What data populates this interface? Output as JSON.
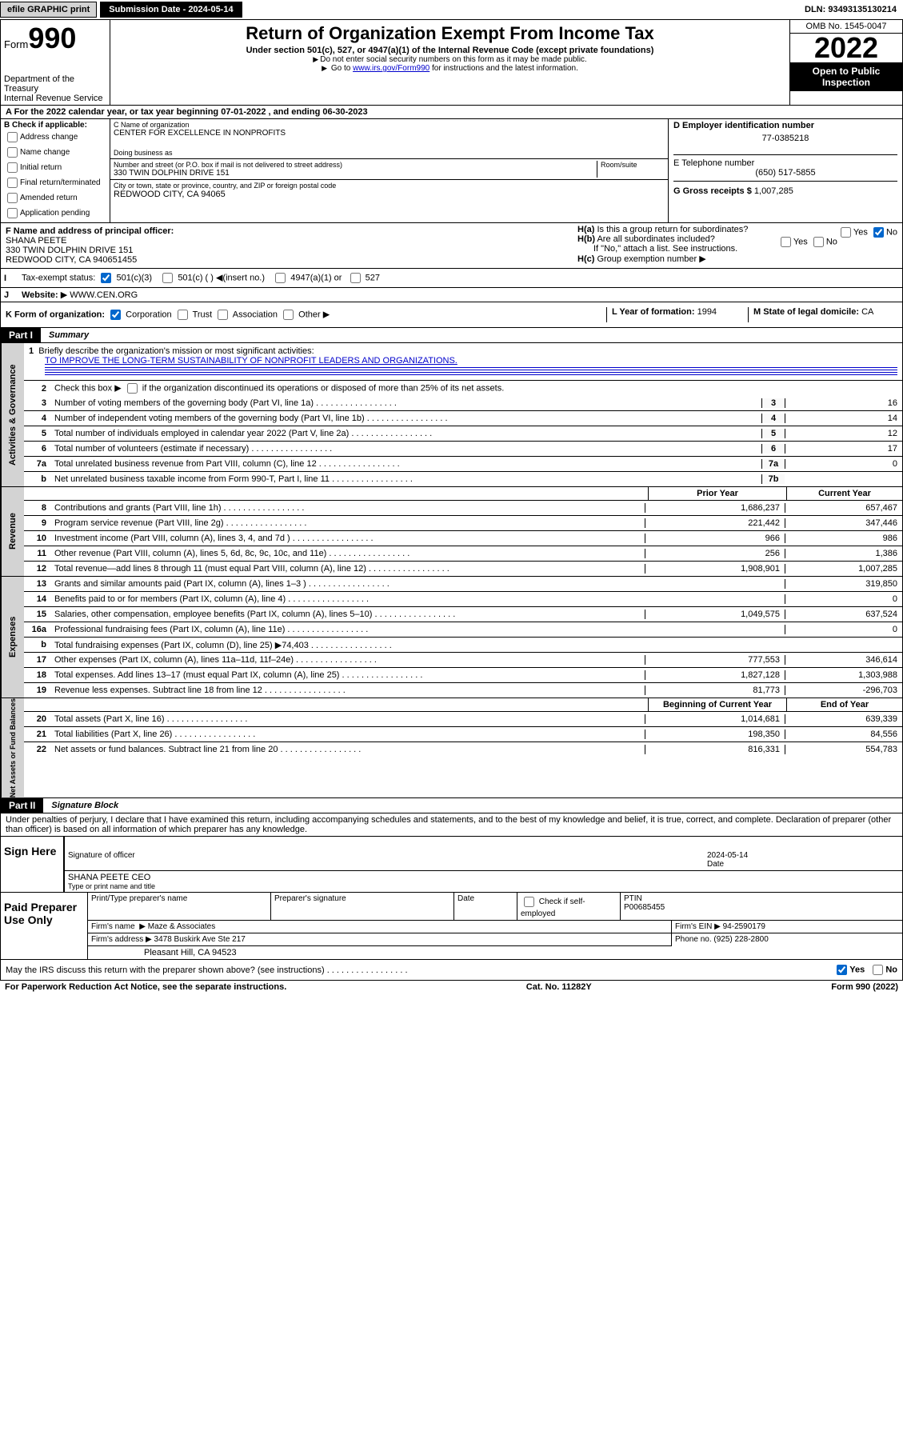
{
  "topbar": {
    "efile": "efile GRAPHIC print",
    "subdate_label": "Submission Date - 2024-05-14",
    "dln": "DLN: 93493135130214"
  },
  "header": {
    "form_label": "Form",
    "form_num": "990",
    "main_title": "Return of Organization Exempt From Income Tax",
    "subtitle": "Under section 501(c), 527, or 4947(a)(1) of the Internal Revenue Code (except private foundations)",
    "note1": "Do not enter social security numbers on this form as it may be made public.",
    "note2a": "Go to ",
    "note2_link": "www.irs.gov/Form990",
    "note2b": " for instructions and the latest information.",
    "dept": "Department of the Treasury",
    "irs": "Internal Revenue Service",
    "omb": "OMB No. 1545-0047",
    "year": "2022",
    "open": "Open to Public Inspection"
  },
  "A": {
    "text": "For the 2022 calendar year, or tax year beginning 07-01-2022   , and ending 06-30-2023",
    "service": "Service"
  },
  "B": {
    "label": "B Check if applicable:",
    "items": [
      "Address change",
      "Name change",
      "Initial return",
      "Final return/terminated",
      "Amended return",
      "Application pending"
    ]
  },
  "C": {
    "name_label": "C Name of organization",
    "name": "CENTER FOR EXCELLENCE IN NONPROFITS",
    "dba_label": "Doing business as",
    "street_label": "Number and street (or P.O. box if mail is not delivered to street address)",
    "room": "Room/suite",
    "street": "330 TWIN DOLPHIN DRIVE 151",
    "city_label": "City or town, state or province, country, and ZIP or foreign postal code",
    "city": "REDWOOD CITY, CA  94065"
  },
  "D": {
    "label": "D Employer identification number",
    "val": "77-0385218"
  },
  "E": {
    "label": "E Telephone number",
    "val": "(650) 517-5855"
  },
  "G": {
    "label": "G Gross receipts $",
    "val": "1,007,285"
  },
  "F": {
    "label": "F  Name and address of principal officer:",
    "name": "SHANA PEETE",
    "addr1": "330 TWIN DOLPHIN DRIVE 151",
    "addr2": "REDWOOD CITY, CA  940651455"
  },
  "H": {
    "a": "Is this a group return for subordinates?",
    "b": "Are all subordinates included?",
    "b_note": "If \"No,\" attach a list. See instructions.",
    "c": "Group exemption number",
    "yes": "Yes",
    "no": "No"
  },
  "I": {
    "label": "Tax-exempt status:",
    "opts": [
      "501(c)(3)",
      "501(c) (  )",
      "(insert no.)",
      "4947(a)(1) or",
      "527"
    ]
  },
  "J": {
    "label": "Website:",
    "val": "WWW.CEN.ORG"
  },
  "K": {
    "label": "K Form of organization:",
    "opts": [
      "Corporation",
      "Trust",
      "Association",
      "Other"
    ]
  },
  "L": {
    "label": "L Year of formation:",
    "val": "1994"
  },
  "M": {
    "label": "M State of legal domicile:",
    "val": "CA"
  },
  "part1": {
    "label": "Part I",
    "title": "Summary",
    "l1": {
      "num": "1",
      "text": "Briefly describe the organization's mission or most significant activities:",
      "val": "TO IMPROVE THE LONG-TERM SUSTAINABILITY OF NONPROFIT LEADERS AND ORGANIZATIONS."
    },
    "l2": {
      "num": "2",
      "text": "Check this box",
      "text2": "if the organization discontinued its operations or disposed of more than 25% of its net assets."
    },
    "lines_num": [
      {
        "num": "3",
        "text": "Number of voting members of the governing body (Part VI, line 1a)",
        "box": "3",
        "val": "16"
      },
      {
        "num": "4",
        "text": "Number of independent voting members of the governing body (Part VI, line 1b)",
        "box": "4",
        "val": "14"
      },
      {
        "num": "5",
        "text": "Total number of individuals employed in calendar year 2022 (Part V, line 2a)",
        "box": "5",
        "val": "12"
      },
      {
        "num": "6",
        "text": "Total number of volunteers (estimate if necessary)",
        "box": "6",
        "val": "17"
      },
      {
        "num": "7a",
        "text": "Total unrelated business revenue from Part VIII, column (C), line 12",
        "box": "7a",
        "val": "0"
      },
      {
        "num": "b",
        "text": "Net unrelated business taxable income from Form 990-T, Part I, line 11",
        "box": "7b",
        "val": ""
      }
    ],
    "colhdr": {
      "prior": "Prior Year",
      "current": "Current Year"
    },
    "rev": [
      {
        "num": "8",
        "text": "Contributions and grants (Part VIII, line 1h)",
        "v1": "1,686,237",
        "v2": "657,467"
      },
      {
        "num": "9",
        "text": "Program service revenue (Part VIII, line 2g)",
        "v1": "221,442",
        "v2": "347,446"
      },
      {
        "num": "10",
        "text": "Investment income (Part VIII, column (A), lines 3, 4, and 7d )",
        "v1": "966",
        "v2": "986"
      },
      {
        "num": "11",
        "text": "Other revenue (Part VIII, column (A), lines 5, 6d, 8c, 9c, 10c, and 11e)",
        "v1": "256",
        "v2": "1,386"
      },
      {
        "num": "12",
        "text": "Total revenue—add lines 8 through 11 (must equal Part VIII, column (A), line 12)",
        "v1": "1,908,901",
        "v2": "1,007,285"
      }
    ],
    "exp": [
      {
        "num": "13",
        "text": "Grants and similar amounts paid (Part IX, column (A), lines 1–3 )",
        "v1": "",
        "v2": "319,850"
      },
      {
        "num": "14",
        "text": "Benefits paid to or for members (Part IX, column (A), line 4)",
        "v1": "",
        "v2": "0"
      },
      {
        "num": "15",
        "text": "Salaries, other compensation, employee benefits (Part IX, column (A), lines 5–10)",
        "v1": "1,049,575",
        "v2": "637,524"
      },
      {
        "num": "16a",
        "text": "Professional fundraising fees (Part IX, column (A), line 11e)",
        "v1": "",
        "v2": "0"
      },
      {
        "num": "b",
        "text": "Total fundraising expenses (Part IX, column (D), line 25)",
        "extra": "74,403",
        "v1": "",
        "v2": ""
      },
      {
        "num": "17",
        "text": "Other expenses (Part IX, column (A), lines 11a–11d, 11f–24e)",
        "v1": "777,553",
        "v2": "346,614"
      },
      {
        "num": "18",
        "text": "Total expenses. Add lines 13–17 (must equal Part IX, column (A), line 25)",
        "v1": "1,827,128",
        "v2": "1,303,988"
      },
      {
        "num": "19",
        "text": "Revenue less expenses. Subtract line 18 from line 12",
        "v1": "81,773",
        "v2": "-296,703"
      }
    ],
    "nethdr": {
      "c1": "Beginning of Current Year",
      "c2": "End of Year"
    },
    "net": [
      {
        "num": "20",
        "text": "Total assets (Part X, line 16)",
        "v1": "1,014,681",
        "v2": "639,339"
      },
      {
        "num": "21",
        "text": "Total liabilities (Part X, line 26)",
        "v1": "198,350",
        "v2": "84,556"
      },
      {
        "num": "22",
        "text": "Net assets or fund balances. Subtract line 21 from line 20",
        "v1": "816,331",
        "v2": "554,783"
      }
    ],
    "sides": {
      "gov": "Activities & Governance",
      "rev": "Revenue",
      "exp": "Expenses",
      "net": "Net Assets or Fund Balances"
    }
  },
  "part2": {
    "label": "Part II",
    "title": "Signature Block",
    "decl": "Under penalties of perjury, I declare that I have examined this return, including accompanying schedules and statements, and to the best of my knowledge and belief, it is true, correct, and complete. Declaration of preparer (other than officer) is based on all information of which preparer has any knowledge.",
    "sign_here": "Sign Here",
    "sig_officer": "Signature of officer",
    "date": "Date",
    "date_val": "2024-05-14",
    "name_title": "SHANA PEETE  CEO",
    "type_name": "Type or print name and title"
  },
  "paid": {
    "label": "Paid Preparer Use Only",
    "hdrs": [
      "Print/Type preparer's name",
      "Preparer's signature",
      "Date"
    ],
    "check": "Check         if self-employed",
    "ptin_label": "PTIN",
    "ptin": "P00685455",
    "firm_name_label": "Firm's name",
    "firm_name": "Maze & Associates",
    "ein_label": "Firm's EIN",
    "ein": "94-2590179",
    "firm_addr_label": "Firm's address",
    "firm_addr1": "3478 Buskirk Ave Ste 217",
    "firm_addr2": "Pleasant Hill, CA  94523",
    "phone_label": "Phone no.",
    "phone": "(925) 228-2800"
  },
  "bottom": {
    "q": "May the IRS discuss this return with the preparer shown above? (see instructions)",
    "yes": "Yes",
    "no": "No",
    "paperwork": "For Paperwork Reduction Act Notice, see the separate instructions.",
    "cat": "Cat. No. 11282Y",
    "form": "Form 990 (2022)"
  }
}
